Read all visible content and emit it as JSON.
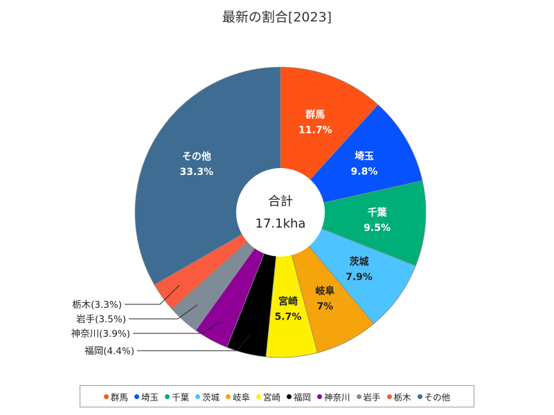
{
  "chart_data": {
    "type": "pie",
    "title": "最新の割合[2023]",
    "center_label": "合計",
    "center_value": "17.1kha",
    "slices": [
      {
        "name": "群馬",
        "value": 11.7,
        "label": "11.7%",
        "color": "#FF5216"
      },
      {
        "name": "埼玉",
        "value": 9.8,
        "label": "9.8%",
        "color": "#0652FF"
      },
      {
        "name": "千葉",
        "value": 9.5,
        "label": "9.5%",
        "color": "#00AF78"
      },
      {
        "name": "茨城",
        "value": 7.9,
        "label": "7.9%",
        "color": "#4DC3FF"
      },
      {
        "name": "岐阜",
        "value": 7.0,
        "label": "7%",
        "color": "#F5A40C"
      },
      {
        "name": "宮崎",
        "value": 5.7,
        "label": "5.7%",
        "color": "#FFF000"
      },
      {
        "name": "福岡",
        "value": 4.4,
        "label": "福岡(4.4%)",
        "color": "#000000"
      },
      {
        "name": "神奈川",
        "value": 3.9,
        "label": "神奈川(3.9%)",
        "color": "#8E0096"
      },
      {
        "name": "岩手",
        "value": 3.5,
        "label": "岩手(3.5%)",
        "color": "#7F8C97"
      },
      {
        "name": "栃木",
        "value": 3.3,
        "label": "栃木(3.3%)",
        "color": "#FA5B3E"
      },
      {
        "name": "その他",
        "value": 33.3,
        "label": "33.3%",
        "color": "#3E6C93"
      }
    ],
    "inside_label_colors": [
      "#ffffff",
      "#ffffff",
      "#ffffff",
      "#222222",
      "#222222",
      "#222222",
      null,
      null,
      null,
      null,
      "#ffffff"
    ]
  }
}
